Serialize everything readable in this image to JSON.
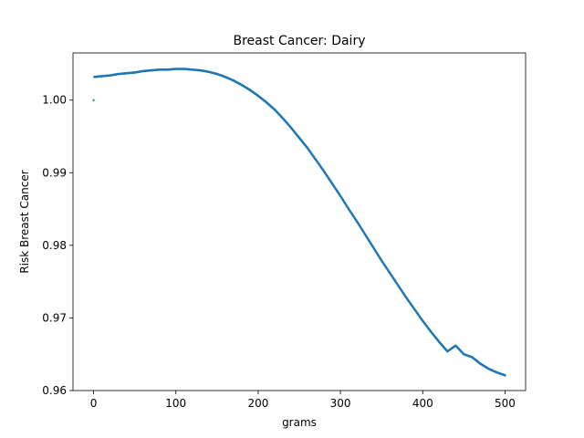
{
  "chart_data": {
    "type": "scatter",
    "title": "Breast Cancer: Dairy",
    "xlabel": "grams",
    "ylabel": "Risk Breast Cancer",
    "xlim": [
      -25,
      525
    ],
    "ylim": [
      0.96,
      1.0065
    ],
    "xticks": [
      0,
      100,
      200,
      300,
      400,
      500
    ],
    "yticks": [
      0.96,
      0.97,
      0.98,
      0.99,
      1.0
    ],
    "ytick_labels": [
      "0.96",
      "0.97",
      "0.98",
      "0.99",
      "1.00"
    ],
    "grid": false,
    "color": "#1f77b4",
    "series": [
      {
        "points": [
          [
            0,
            1.0
          ],
          [
            1,
            1.0032
          ],
          [
            10,
            1.0033
          ],
          [
            20,
            1.0034
          ],
          [
            30,
            1.0036
          ],
          [
            40,
            1.0037
          ],
          [
            50,
            1.0038
          ],
          [
            60,
            1.004
          ],
          [
            70,
            1.0041
          ],
          [
            80,
            1.0042
          ],
          [
            90,
            1.0042
          ],
          [
            100,
            1.0043
          ],
          [
            110,
            1.0043
          ],
          [
            120,
            1.0042
          ],
          [
            130,
            1.0041
          ],
          [
            140,
            1.0039
          ],
          [
            150,
            1.0036
          ],
          [
            160,
            1.0032
          ],
          [
            170,
            1.0027
          ],
          [
            180,
            1.0021
          ],
          [
            190,
            1.0014
          ],
          [
            200,
            1.0006
          ],
          [
            210,
            0.9997
          ],
          [
            220,
            0.9987
          ],
          [
            230,
            0.9975
          ],
          [
            240,
            0.9962
          ],
          [
            250,
            0.9948
          ],
          [
            260,
            0.9934
          ],
          [
            270,
            0.9918
          ],
          [
            280,
            0.9902
          ],
          [
            290,
            0.9885
          ],
          [
            300,
            0.9868
          ],
          [
            310,
            0.985
          ],
          [
            320,
            0.9833
          ],
          [
            330,
            0.9815
          ],
          [
            340,
            0.9797
          ],
          [
            350,
            0.9779
          ],
          [
            360,
            0.9762
          ],
          [
            370,
            0.9745
          ],
          [
            380,
            0.9728
          ],
          [
            390,
            0.9712
          ],
          [
            400,
            0.9696
          ],
          [
            410,
            0.9681
          ],
          [
            420,
            0.9667
          ],
          [
            430,
            0.9654
          ],
          [
            440,
            0.9662
          ],
          [
            450,
            0.965
          ],
          [
            460,
            0.9646
          ],
          [
            470,
            0.9637
          ],
          [
            480,
            0.963
          ],
          [
            490,
            0.9625
          ],
          [
            500,
            0.9621
          ]
        ]
      }
    ]
  }
}
